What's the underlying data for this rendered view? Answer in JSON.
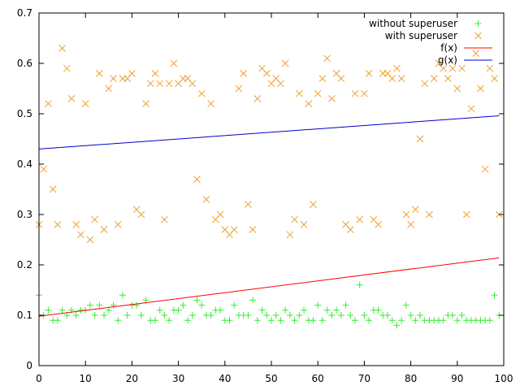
{
  "chart_data": {
    "type": "scatter",
    "title": "",
    "xlabel": "",
    "ylabel": "",
    "xlim": [
      0,
      100
    ],
    "ylim": [
      0,
      0.7
    ],
    "x_ticks": [
      0,
      10,
      20,
      30,
      40,
      50,
      60,
      70,
      80,
      90,
      100
    ],
    "y_ticks": [
      0,
      0.1,
      0.2,
      0.3,
      0.4,
      0.5,
      0.6,
      0.7
    ],
    "grid": false,
    "legend_position": "top-right",
    "series": [
      {
        "name": "without superuser",
        "kind": "points",
        "marker": "plus",
        "color": "#33ee33",
        "x": [
          0,
          1,
          2,
          3,
          4,
          5,
          6,
          7,
          8,
          9,
          10,
          11,
          12,
          13,
          14,
          15,
          16,
          17,
          18,
          19,
          20,
          21,
          22,
          23,
          24,
          25,
          26,
          27,
          28,
          29,
          30,
          31,
          32,
          33,
          34,
          35,
          36,
          37,
          38,
          39,
          40,
          41,
          42,
          43,
          44,
          45,
          46,
          47,
          48,
          49,
          50,
          51,
          52,
          53,
          54,
          55,
          56,
          57,
          58,
          59,
          60,
          61,
          62,
          63,
          64,
          65,
          66,
          67,
          68,
          69,
          70,
          71,
          72,
          73,
          74,
          75,
          76,
          77,
          78,
          79,
          80,
          81,
          82,
          83,
          84,
          85,
          86,
          87,
          88,
          89,
          90,
          91,
          92,
          93,
          94,
          95,
          96,
          97,
          98,
          99
        ],
        "y": [
          0.14,
          0.1,
          0.11,
          0.09,
          0.09,
          0.11,
          0.1,
          0.11,
          0.1,
          0.11,
          0.11,
          0.12,
          0.1,
          0.12,
          0.1,
          0.11,
          0.12,
          0.09,
          0.14,
          0.1,
          0.12,
          0.12,
          0.1,
          0.13,
          0.09,
          0.09,
          0.11,
          0.1,
          0.09,
          0.11,
          0.11,
          0.12,
          0.09,
          0.1,
          0.13,
          0.12,
          0.1,
          0.1,
          0.11,
          0.11,
          0.09,
          0.09,
          0.12,
          0.1,
          0.1,
          0.1,
          0.13,
          0.09,
          0.11,
          0.1,
          0.09,
          0.1,
          0.09,
          0.11,
          0.1,
          0.09,
          0.1,
          0.11,
          0.09,
          0.09,
          0.12,
          0.09,
          0.11,
          0.1,
          0.11,
          0.1,
          0.12,
          0.1,
          0.09,
          0.16,
          0.1,
          0.09,
          0.11,
          0.11,
          0.1,
          0.1,
          0.09,
          0.08,
          0.09,
          0.12,
          0.1,
          0.09,
          0.1,
          0.09,
          0.09,
          0.09,
          0.09,
          0.09,
          0.1,
          0.1,
          0.09,
          0.1,
          0.09,
          0.09,
          0.09,
          0.09,
          0.09,
          0.09,
          0.14,
          0.1
        ]
      },
      {
        "name": "with superuser",
        "kind": "points",
        "marker": "cross",
        "color": "#f0a030",
        "x": [
          0,
          1,
          2,
          3,
          4,
          5,
          6,
          7,
          8,
          9,
          10,
          11,
          12,
          13,
          14,
          15,
          16,
          17,
          18,
          19,
          20,
          21,
          22,
          23,
          24,
          25,
          26,
          27,
          28,
          29,
          30,
          31,
          32,
          33,
          34,
          35,
          36,
          37,
          38,
          39,
          40,
          41,
          42,
          43,
          44,
          45,
          46,
          47,
          48,
          49,
          50,
          51,
          52,
          53,
          54,
          55,
          56,
          57,
          58,
          59,
          60,
          61,
          62,
          63,
          64,
          65,
          66,
          67,
          68,
          69,
          70,
          71,
          72,
          73,
          74,
          75,
          76,
          77,
          78,
          79,
          80,
          81,
          82,
          83,
          84,
          85,
          86,
          87,
          88,
          89,
          90,
          91,
          92,
          93,
          94,
          95,
          96,
          97,
          98,
          99
        ],
        "y": [
          0.28,
          0.39,
          0.52,
          0.35,
          0.28,
          0.63,
          0.59,
          0.53,
          0.28,
          0.26,
          0.52,
          0.25,
          0.29,
          0.58,
          0.27,
          0.55,
          0.57,
          0.28,
          0.57,
          0.57,
          0.58,
          0.31,
          0.3,
          0.52,
          0.56,
          0.58,
          0.56,
          0.29,
          0.56,
          0.6,
          0.56,
          0.57,
          0.57,
          0.56,
          0.37,
          0.54,
          0.33,
          0.52,
          0.29,
          0.3,
          0.27,
          0.26,
          0.27,
          0.55,
          0.58,
          0.32,
          0.27,
          0.53,
          0.59,
          0.58,
          0.56,
          0.57,
          0.56,
          0.6,
          0.26,
          0.29,
          0.54,
          0.28,
          0.52,
          0.32,
          0.54,
          0.57,
          0.61,
          0.53,
          0.58,
          0.57,
          0.28,
          0.27,
          0.54,
          0.29,
          0.54,
          0.58,
          0.29,
          0.28,
          0.58,
          0.58,
          0.57,
          0.59,
          0.57,
          0.3,
          0.28,
          0.31,
          0.45,
          0.56,
          0.3,
          0.57,
          0.6,
          0.59,
          0.57,
          0.59,
          0.55,
          0.59,
          0.3,
          0.51,
          0.62,
          0.55,
          0.39,
          0.59,
          0.57,
          0.3
        ]
      },
      {
        "name": "f(x)",
        "kind": "line",
        "color": "#ff0000",
        "x": [
          0,
          99
        ],
        "y": [
          0.098,
          0.214
        ]
      },
      {
        "name": "g(x)",
        "kind": "line",
        "color": "#0000cc",
        "x": [
          0,
          99
        ],
        "y": [
          0.43,
          0.496
        ]
      }
    ]
  }
}
